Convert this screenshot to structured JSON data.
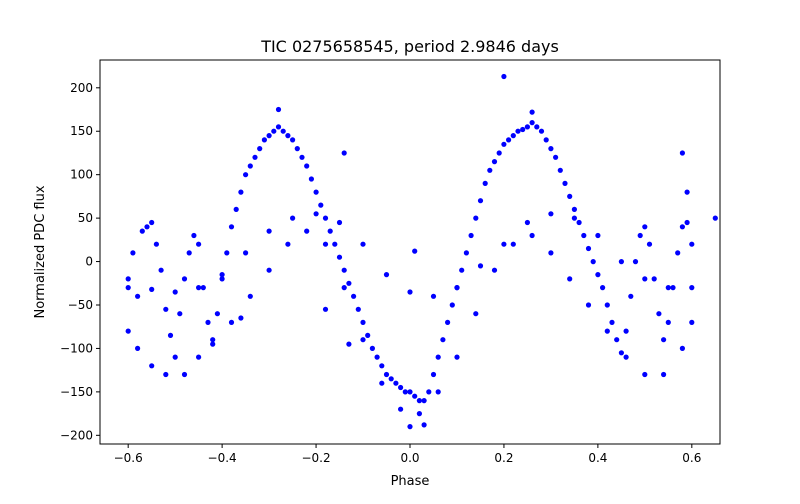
{
  "chart_data": {
    "type": "scatter",
    "title": "TIC 0275658545, period 2.9846 days",
    "xlabel": "Phase",
    "ylabel": "Normalized PDC flux",
    "xlim": [
      -0.66,
      0.66
    ],
    "ylim": [
      -210,
      232
    ],
    "xticks": [
      -0.6,
      -0.4,
      -0.2,
      0.0,
      0.2,
      0.4,
      0.6
    ],
    "xtick_labels": [
      "−0.6",
      "−0.4",
      "−0.2",
      "0.0",
      "0.2",
      "0.4",
      "0.6"
    ],
    "yticks": [
      -200,
      -150,
      -100,
      -50,
      0,
      50,
      100,
      150,
      200
    ],
    "ytick_labels": [
      "−200",
      "−150",
      "−100",
      "−50",
      "0",
      "50",
      "100",
      "150",
      "200"
    ],
    "grid": false,
    "legend": "none",
    "marker_color": "#0000ff",
    "series": [
      {
        "points": [
          [
            -0.6,
            -20
          ],
          [
            -0.59,
            10
          ],
          [
            -0.58,
            -40
          ],
          [
            -0.57,
            35
          ],
          [
            -0.56,
            40
          ],
          [
            -0.55,
            45
          ],
          [
            -0.54,
            20
          ],
          [
            -0.53,
            -10
          ],
          [
            -0.52,
            -55
          ],
          [
            -0.51,
            -85
          ],
          [
            -0.5,
            -110
          ],
          [
            -0.49,
            -60
          ],
          [
            -0.48,
            -20
          ],
          [
            -0.47,
            10
          ],
          [
            -0.46,
            30
          ],
          [
            -0.45,
            20
          ],
          [
            -0.44,
            -30
          ],
          [
            -0.43,
            -70
          ],
          [
            -0.42,
            -90
          ],
          [
            -0.41,
            -60
          ],
          [
            -0.4,
            -20
          ],
          [
            -0.39,
            10
          ],
          [
            -0.38,
            40
          ],
          [
            -0.37,
            60
          ],
          [
            -0.36,
            80
          ],
          [
            -0.35,
            100
          ],
          [
            -0.34,
            110
          ],
          [
            -0.33,
            120
          ],
          [
            -0.32,
            130
          ],
          [
            -0.31,
            140
          ],
          [
            -0.3,
            145
          ],
          [
            -0.29,
            150
          ],
          [
            -0.28,
            155
          ],
          [
            -0.27,
            150
          ],
          [
            -0.26,
            145
          ],
          [
            -0.25,
            140
          ],
          [
            -0.24,
            130
          ],
          [
            -0.23,
            120
          ],
          [
            -0.22,
            110
          ],
          [
            -0.21,
            95
          ],
          [
            -0.2,
            80
          ],
          [
            -0.19,
            65
          ],
          [
            -0.18,
            50
          ],
          [
            -0.17,
            35
          ],
          [
            -0.16,
            20
          ],
          [
            -0.15,
            5
          ],
          [
            -0.14,
            -10
          ],
          [
            -0.13,
            -25
          ],
          [
            -0.12,
            -40
          ],
          [
            -0.11,
            -55
          ],
          [
            -0.1,
            -70
          ],
          [
            -0.09,
            -85
          ],
          [
            -0.08,
            -100
          ],
          [
            -0.07,
            -110
          ],
          [
            -0.06,
            -120
          ],
          [
            -0.05,
            -130
          ],
          [
            -0.04,
            -135
          ],
          [
            -0.03,
            -140
          ],
          [
            -0.02,
            -145
          ],
          [
            -0.01,
            -150
          ],
          [
            0.0,
            -150
          ],
          [
            0.01,
            -155
          ],
          [
            0.02,
            -160
          ],
          [
            0.03,
            -160
          ],
          [
            0.04,
            -150
          ],
          [
            0.05,
            -130
          ],
          [
            0.06,
            -110
          ],
          [
            0.07,
            -90
          ],
          [
            0.08,
            -70
          ],
          [
            0.09,
            -50
          ],
          [
            0.1,
            -30
          ],
          [
            0.11,
            -10
          ],
          [
            0.12,
            10
          ],
          [
            0.13,
            30
          ],
          [
            0.14,
            50
          ],
          [
            0.15,
            70
          ],
          [
            0.16,
            90
          ],
          [
            0.17,
            105
          ],
          [
            0.18,
            115
          ],
          [
            0.19,
            125
          ],
          [
            0.2,
            135
          ],
          [
            0.21,
            140
          ],
          [
            0.22,
            145
          ],
          [
            0.23,
            150
          ],
          [
            0.24,
            152
          ],
          [
            0.25,
            155
          ],
          [
            0.26,
            160
          ],
          [
            0.27,
            155
          ],
          [
            0.28,
            150
          ],
          [
            0.29,
            140
          ],
          [
            0.3,
            130
          ],
          [
            0.31,
            120
          ],
          [
            0.32,
            105
          ],
          [
            0.33,
            90
          ],
          [
            0.34,
            75
          ],
          [
            0.35,
            60
          ],
          [
            0.36,
            45
          ],
          [
            0.37,
            30
          ],
          [
            0.38,
            15
          ],
          [
            0.39,
            0
          ],
          [
            0.4,
            -15
          ],
          [
            0.41,
            -30
          ],
          [
            0.42,
            -50
          ],
          [
            0.43,
            -70
          ],
          [
            0.44,
            -90
          ],
          [
            0.45,
            -105
          ],
          [
            0.46,
            -80
          ],
          [
            0.47,
            -40
          ],
          [
            0.48,
            0
          ],
          [
            0.49,
            30
          ],
          [
            0.5,
            40
          ],
          [
            0.51,
            20
          ],
          [
            0.52,
            -20
          ],
          [
            0.53,
            -60
          ],
          [
            0.54,
            -90
          ],
          [
            0.55,
            -70
          ],
          [
            0.56,
            -30
          ],
          [
            0.57,
            10
          ],
          [
            0.58,
            40
          ],
          [
            0.59,
            45
          ],
          [
            0.6,
            20
          ],
          [
            -0.6,
            -80
          ],
          [
            -0.58,
            -100
          ],
          [
            -0.55,
            -120
          ],
          [
            -0.52,
            -130
          ],
          [
            -0.48,
            -130
          ],
          [
            -0.45,
            -110
          ],
          [
            -0.42,
            -95
          ],
          [
            -0.38,
            -70
          ],
          [
            -0.34,
            -40
          ],
          [
            -0.3,
            -10
          ],
          [
            -0.26,
            20
          ],
          [
            -0.22,
            35
          ],
          [
            -0.18,
            20
          ],
          [
            -0.14,
            -30
          ],
          [
            -0.1,
            -90
          ],
          [
            -0.06,
            -140
          ],
          [
            -0.02,
            -170
          ],
          [
            0.02,
            -175
          ],
          [
            0.06,
            -150
          ],
          [
            0.1,
            -110
          ],
          [
            0.14,
            -60
          ],
          [
            0.18,
            -10
          ],
          [
            0.22,
            20
          ],
          [
            0.26,
            30
          ],
          [
            0.3,
            10
          ],
          [
            0.34,
            -20
          ],
          [
            0.38,
            -50
          ],
          [
            0.42,
            -80
          ],
          [
            0.46,
            -110
          ],
          [
            0.5,
            -130
          ],
          [
            0.54,
            -130
          ],
          [
            0.58,
            -100
          ],
          [
            0.6,
            -70
          ],
          [
            -0.6,
            -30
          ],
          [
            -0.55,
            -32
          ],
          [
            -0.5,
            -35
          ],
          [
            -0.45,
            -30
          ],
          [
            -0.4,
            -15
          ],
          [
            -0.35,
            10
          ],
          [
            -0.3,
            35
          ],
          [
            -0.25,
            50
          ],
          [
            -0.2,
            55
          ],
          [
            -0.15,
            45
          ],
          [
            -0.1,
            20
          ],
          [
            -0.05,
            -15
          ],
          [
            0.0,
            -35
          ],
          [
            0.05,
            -40
          ],
          [
            0.1,
            -30
          ],
          [
            0.15,
            -5
          ],
          [
            0.2,
            20
          ],
          [
            0.25,
            45
          ],
          [
            0.3,
            55
          ],
          [
            0.35,
            50
          ],
          [
            0.4,
            30
          ],
          [
            0.45,
            0
          ],
          [
            0.5,
            -20
          ],
          [
            0.55,
            -30
          ],
          [
            0.6,
            -30
          ],
          [
            0.2,
            213
          ],
          [
            -0.28,
            175
          ],
          [
            0.26,
            172
          ],
          [
            -0.14,
            125
          ],
          [
            0.01,
            12
          ],
          [
            -0.18,
            -55
          ],
          [
            -0.13,
            -95
          ],
          [
            0.0,
            -190
          ],
          [
            0.03,
            -188
          ],
          [
            0.58,
            125
          ],
          [
            0.59,
            80
          ],
          [
            0.65,
            50
          ],
          [
            -0.36,
            -65
          ]
        ]
      }
    ]
  }
}
